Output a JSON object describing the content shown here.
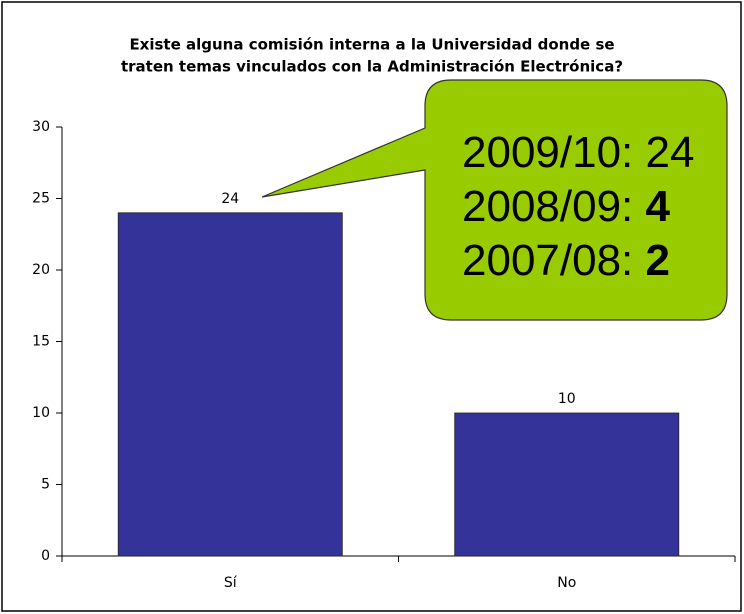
{
  "chart_data": {
    "type": "bar",
    "title": [
      "Existe alguna comisión interna a la Universidad donde se",
      "traten temas vinculados con la Administración Electrónica?"
    ],
    "categories": [
      "Sí",
      "No"
    ],
    "values": [
      24,
      10
    ],
    "color": "#333399",
    "ylim": [
      0,
      30
    ],
    "yticks": [
      0,
      5,
      10,
      15,
      20,
      25,
      30
    ],
    "grid": false,
    "annotation": {
      "color": "#99cc00",
      "lines": [
        [
          "2009/10: 24"
        ],
        [
          "2008/09: ",
          "4"
        ],
        [
          "2007/08: ",
          "2"
        ]
      ]
    }
  }
}
